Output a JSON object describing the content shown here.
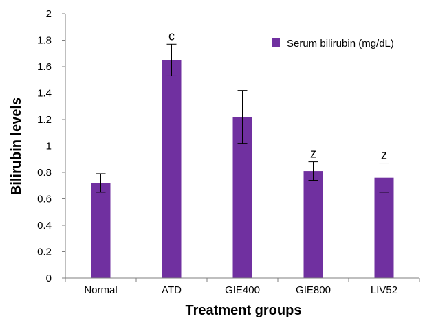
{
  "chart_data": {
    "type": "bar",
    "title": "",
    "xlabel": "Treatment groups",
    "ylabel": "Bilirubin levels",
    "ylim": [
      0,
      2
    ],
    "yticks": [
      "0",
      "0.2",
      "0.4",
      "0.6",
      "0.8",
      "1",
      "1.2",
      "1.4",
      "1.6",
      "1.8",
      "2"
    ],
    "categories": [
      "Normal",
      "ATD",
      "GIE400",
      "GIE800",
      "LIV52"
    ],
    "series": [
      {
        "name": "Serum bilirubin (mg/dL)",
        "color": "#7030a0",
        "values": [
          0.72,
          1.65,
          1.22,
          0.81,
          0.76
        ],
        "errors": [
          0.07,
          0.12,
          0.2,
          0.07,
          0.11
        ]
      }
    ],
    "annotations": [
      "",
      "c",
      "",
      "z",
      "z"
    ],
    "legend": {
      "position": "top-right"
    },
    "grid": false
  }
}
